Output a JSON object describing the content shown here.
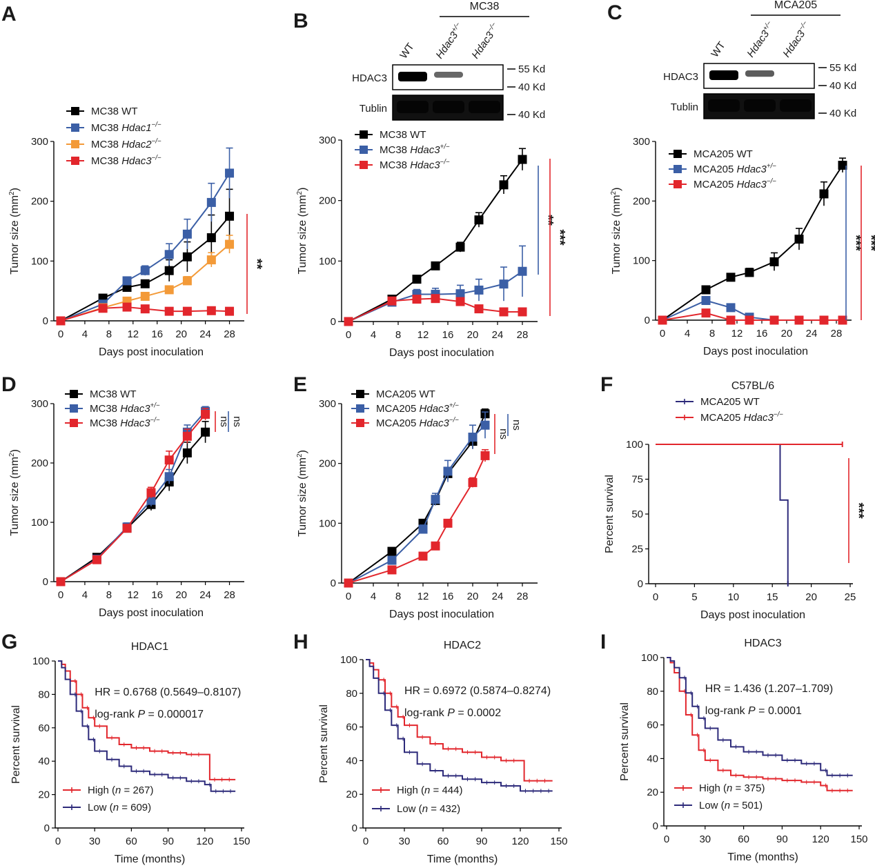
{
  "panel_labels": [
    "A",
    "B",
    "C",
    "D",
    "E",
    "F",
    "G",
    "H",
    "I"
  ],
  "colors": {
    "black": "#000000",
    "blue": "#3b5fa6",
    "orange": "#f39a38",
    "red": "#e2262c",
    "navy": "#2d2a7a",
    "km_red": "#e2262c"
  },
  "blots": {
    "B": {
      "group": "MC38",
      "lanes": [
        "WT",
        "Hdac3+/−",
        "Hdac3−/−"
      ],
      "rows": [
        "HDAC3",
        "Tublin"
      ],
      "markers": [
        "55 Kd",
        "40 Kd",
        "40 Kd"
      ],
      "hdac3_intensity": [
        1.0,
        0.55,
        0.0
      ]
    },
    "C": {
      "group": "MCA205",
      "lanes": [
        "WT",
        "Hdac3+/−",
        "Hdac3−/−"
      ],
      "rows": [
        "HDAC3",
        "Tublin"
      ],
      "markers": [
        "55 Kd",
        "40 Kd",
        "40 Kd"
      ],
      "hdac3_intensity": [
        1.0,
        0.6,
        0.0
      ]
    }
  },
  "chart_data": [
    {
      "panel": "A",
      "type": "line",
      "title": "",
      "xlabel": "Days post inoculation",
      "ylabel": "Tumor size (mm2)",
      "xlim": [
        0,
        30
      ],
      "ylim": [
        0,
        300
      ],
      "xticks": [
        0,
        4,
        8,
        12,
        16,
        20,
        24,
        28
      ],
      "yticks": [
        0,
        100,
        200,
        300
      ],
      "legend": "top-left",
      "series": [
        {
          "name": "MC38 WT",
          "color": "#000000",
          "x": [
            0,
            7,
            11,
            14,
            18,
            21,
            25,
            28
          ],
          "y": [
            0,
            38,
            56,
            62,
            84,
            107,
            139,
            175
          ],
          "err": [
            0,
            4,
            6,
            5,
            18,
            25,
            38,
            45
          ]
        },
        {
          "name": "MC38 Hdac1−/−",
          "color": "#3b5fa6",
          "x": [
            0,
            7,
            11,
            14,
            18,
            21,
            25,
            28
          ],
          "y": [
            0,
            28,
            67,
            84,
            111,
            145,
            198,
            247
          ],
          "err": [
            0,
            4,
            5,
            8,
            18,
            25,
            32,
            42
          ]
        },
        {
          "name": "MC38 Hdac2−/−",
          "color": "#f39a38",
          "x": [
            0,
            7,
            11,
            14,
            18,
            21,
            25,
            28
          ],
          "y": [
            0,
            22,
            33,
            41,
            52,
            67,
            102,
            128
          ],
          "err": [
            0,
            3,
            4,
            5,
            6,
            7,
            12,
            15
          ]
        },
        {
          "name": "MC38 Hdac3−/−",
          "color": "#e2262c",
          "x": [
            0,
            7,
            11,
            14,
            18,
            21,
            25,
            28
          ],
          "y": [
            0,
            21,
            23,
            20,
            16,
            16,
            17,
            16
          ],
          "err": [
            0,
            3,
            3,
            3,
            2,
            2,
            2,
            2
          ]
        }
      ],
      "significance": [
        {
          "label": "**",
          "color": "#e2262c"
        }
      ]
    },
    {
      "panel": "B",
      "type": "line",
      "title": "",
      "xlabel": "Days post inoculation",
      "ylabel": "Tumor size (mm2)",
      "xlim": [
        0,
        30
      ],
      "ylim": [
        0,
        300
      ],
      "xticks": [
        0,
        4,
        8,
        12,
        16,
        20,
        24,
        28
      ],
      "yticks": [
        0,
        100,
        200,
        300
      ],
      "legend": "top-left",
      "series": [
        {
          "name": "MC38 WT",
          "color": "#000000",
          "x": [
            0,
            7,
            11,
            14,
            18,
            21,
            25,
            28
          ],
          "y": [
            0,
            37,
            70,
            92,
            123,
            168,
            226,
            268
          ],
          "err": [
            0,
            4,
            5,
            5,
            8,
            12,
            15,
            18
          ]
        },
        {
          "name": "MC38 Hdac3+/−",
          "color": "#3b5fa6",
          "x": [
            0,
            7,
            11,
            14,
            18,
            21,
            25,
            28
          ],
          "y": [
            0,
            32,
            45,
            45,
            46,
            52,
            62,
            83
          ],
          "err": [
            0,
            4,
            8,
            10,
            14,
            18,
            28,
            42
          ]
        },
        {
          "name": "MC38 Hdac3−/−",
          "color": "#e2262c",
          "x": [
            0,
            7,
            11,
            14,
            18,
            21,
            25,
            28
          ],
          "y": [
            0,
            34,
            37,
            38,
            33,
            21,
            16,
            16
          ],
          "err": [
            0,
            4,
            5,
            5,
            4,
            3,
            2,
            2
          ]
        }
      ],
      "significance": [
        {
          "label": "**",
          "color": "#3b5fa6"
        },
        {
          "label": "***",
          "color": "#e2262c"
        }
      ]
    },
    {
      "panel": "C",
      "type": "line",
      "title": "",
      "xlabel": "Days post inoculation",
      "ylabel": "Tumor size (mm2)",
      "xlim": [
        0,
        30
      ],
      "ylim": [
        0,
        300
      ],
      "xticks": [
        0,
        4,
        8,
        12,
        16,
        20,
        24,
        28
      ],
      "yticks": [
        0,
        100,
        200,
        300
      ],
      "legend": "top-left",
      "series": [
        {
          "name": "MCA205 WT",
          "color": "#000000",
          "x": [
            0,
            7,
            11,
            14,
            18,
            22,
            26,
            29
          ],
          "y": [
            0,
            51,
            72,
            80,
            98,
            136,
            212,
            260
          ],
          "err": [
            0,
            5,
            5,
            7,
            15,
            18,
            20,
            12
          ]
        },
        {
          "name": "MCA205 Hdac3+/−",
          "color": "#3b5fa6",
          "x": [
            0,
            7,
            11,
            14,
            18,
            22,
            26,
            29
          ],
          "y": [
            0,
            33,
            21,
            5,
            0,
            0,
            0,
            0
          ],
          "err": [
            0,
            3,
            3,
            2,
            0,
            0,
            0,
            0
          ]
        },
        {
          "name": "MCA205 Hdac3−/−",
          "color": "#e2262c",
          "x": [
            0,
            7,
            11,
            14,
            18,
            22,
            26,
            29
          ],
          "y": [
            0,
            12,
            0,
            0,
            0,
            0,
            0,
            0
          ],
          "err": [
            0,
            2,
            0,
            0,
            0,
            0,
            0,
            0
          ]
        }
      ],
      "significance": [
        {
          "label": "***",
          "color": "#3b5fa6"
        },
        {
          "label": "***",
          "color": "#e2262c"
        }
      ]
    },
    {
      "panel": "D",
      "type": "line",
      "title": "",
      "xlabel": "Days post inoculation",
      "ylabel": "Tumor size (mm2)",
      "xlim": [
        0,
        30
      ],
      "ylim": [
        0,
        300
      ],
      "xticks": [
        0,
        4,
        8,
        12,
        16,
        20,
        24,
        28
      ],
      "yticks": [
        0,
        100,
        200,
        300
      ],
      "legend": "top-left",
      "series": [
        {
          "name": "MC38 WT",
          "color": "#000000",
          "x": [
            0,
            6,
            11,
            15,
            18,
            21,
            24
          ],
          "y": [
            0,
            41,
            90,
            130,
            168,
            217,
            252
          ],
          "err": [
            0,
            4,
            7,
            10,
            15,
            18,
            18
          ]
        },
        {
          "name": "MC38 Hdac3+/−",
          "color": "#3b5fa6",
          "x": [
            0,
            6,
            11,
            15,
            18,
            21,
            24
          ],
          "y": [
            0,
            38,
            92,
            137,
            177,
            252,
            287
          ],
          "err": [
            0,
            4,
            7,
            10,
            12,
            12,
            8
          ]
        },
        {
          "name": "MC38 Hdac3−/−",
          "color": "#e2262c",
          "x": [
            0,
            6,
            11,
            15,
            18,
            21,
            24
          ],
          "y": [
            0,
            37,
            90,
            150,
            205,
            245,
            282
          ],
          "err": [
            0,
            4,
            6,
            9,
            15,
            12,
            10
          ]
        }
      ],
      "significance": [
        {
          "label": "ns",
          "color": "#e2262c"
        },
        {
          "label": "ns",
          "color": "#3b5fa6"
        }
      ]
    },
    {
      "panel": "E",
      "type": "line",
      "title": "",
      "xlabel": "Days post inoculation",
      "ylabel": "Tumor size (mm2)",
      "xlim": [
        0,
        30
      ],
      "ylim": [
        0,
        300
      ],
      "xticks": [
        0,
        4,
        8,
        12,
        16,
        20,
        24,
        28
      ],
      "yticks": [
        0,
        100,
        200,
        300
      ],
      "legend": "top-left",
      "series": [
        {
          "name": "MCA205 WT",
          "color": "#000000",
          "x": [
            0,
            7,
            12,
            14,
            16,
            20,
            22
          ],
          "y": [
            0,
            53,
            100,
            138,
            183,
            237,
            283
          ],
          "err": [
            0,
            4,
            6,
            8,
            10,
            12,
            8
          ]
        },
        {
          "name": "MCA205 Hdac3+/−",
          "color": "#3b5fa6",
          "x": [
            0,
            7,
            12,
            14,
            16,
            20,
            22
          ],
          "y": [
            0,
            38,
            90,
            140,
            187,
            244,
            264
          ],
          "err": [
            0,
            4,
            7,
            10,
            18,
            20,
            22
          ]
        },
        {
          "name": "MCA205 Hdac3−/−",
          "color": "#e2262c",
          "x": [
            0,
            7,
            12,
            14,
            16,
            20,
            22
          ],
          "y": [
            0,
            22,
            45,
            62,
            100,
            168,
            213
          ],
          "err": [
            0,
            3,
            4,
            5,
            6,
            8,
            10
          ]
        }
      ],
      "significance": [
        {
          "label": "ns",
          "color": "#e2262c"
        },
        {
          "label": "ns",
          "color": "#3b5fa6"
        }
      ]
    },
    {
      "panel": "F",
      "type": "line",
      "title": "C57BL/6",
      "xlabel": "Days post inoculation",
      "ylabel": "Percent survival",
      "xlim": [
        0,
        25
      ],
      "ylim": [
        0,
        100
      ],
      "xticks": [
        0,
        5,
        10,
        15,
        20,
        25
      ],
      "yticks": [
        0,
        25,
        50,
        75,
        100
      ],
      "legend": "top",
      "series": [
        {
          "name": "MCA205 WT",
          "color": "#2d2a7a",
          "x": [
            0,
            16,
            16,
            17,
            17
          ],
          "y": [
            100,
            100,
            60,
            60,
            0
          ]
        },
        {
          "name": "MCA205 Hdac3−/−",
          "color": "#e2262c",
          "x": [
            0,
            24
          ],
          "y": [
            100,
            100
          ]
        }
      ],
      "significance": [
        {
          "label": "***",
          "color": "#e2262c"
        }
      ]
    },
    {
      "panel": "G",
      "type": "line",
      "title": "HDAC1",
      "xlabel": "Time (months)",
      "ylabel": "Percent survival",
      "xlim": [
        0,
        150
      ],
      "ylim": [
        0,
        100
      ],
      "xticks": [
        0,
        30,
        60,
        90,
        120,
        150
      ],
      "yticks": [
        0,
        20,
        40,
        60,
        80,
        100
      ],
      "legend": "bottom-left",
      "annotations": [
        "HR = 0.6768 (0.5649–0.8107)",
        "log-rank P = 0.000017"
      ],
      "series": [
        {
          "name": "High (n = 267)",
          "color": "#e2262c",
          "x": [
            0,
            3,
            6,
            10,
            15,
            20,
            25,
            30,
            40,
            50,
            60,
            75,
            90,
            105,
            120,
            124,
            124,
            145
          ],
          "y": [
            100,
            98,
            94,
            88,
            80,
            72,
            66,
            61,
            54,
            50,
            48,
            46,
            45,
            44,
            44,
            44,
            29,
            29
          ]
        },
        {
          "name": "Low (n = 609)",
          "color": "#2d2a7a",
          "x": [
            0,
            3,
            6,
            10,
            15,
            20,
            25,
            30,
            40,
            50,
            60,
            75,
            90,
            105,
            120,
            125,
            145
          ],
          "y": [
            100,
            96,
            89,
            80,
            70,
            61,
            53,
            46,
            41,
            37,
            34,
            32,
            30,
            28,
            26,
            22,
            22
          ]
        }
      ]
    },
    {
      "panel": "H",
      "type": "line",
      "title": "HDAC2",
      "xlabel": "Time (months)",
      "ylabel": "Percent survival",
      "xlim": [
        0,
        150
      ],
      "ylim": [
        0,
        100
      ],
      "xticks": [
        0,
        30,
        60,
        90,
        120,
        150
      ],
      "yticks": [
        0,
        20,
        40,
        60,
        80,
        100
      ],
      "legend": "bottom-left",
      "annotations": [
        "HR = 0.6972 (0.5874–0.8274)",
        "log-rank P = 0.0002"
      ],
      "series": [
        {
          "name": "High (n = 444)",
          "color": "#e2262c",
          "x": [
            0,
            3,
            6,
            10,
            15,
            20,
            25,
            30,
            40,
            50,
            60,
            75,
            90,
            105,
            120,
            123,
            123,
            145
          ],
          "y": [
            100,
            98,
            94,
            88,
            80,
            72,
            66,
            61,
            54,
            50,
            47,
            45,
            42,
            40,
            40,
            40,
            28,
            28
          ]
        },
        {
          "name": "Low (n = 432)",
          "color": "#2d2a7a",
          "x": [
            0,
            3,
            6,
            10,
            15,
            20,
            25,
            30,
            40,
            50,
            60,
            75,
            90,
            105,
            120,
            145
          ],
          "y": [
            100,
            96,
            89,
            80,
            70,
            61,
            53,
            45,
            38,
            34,
            31,
            29,
            27,
            25,
            22,
            22
          ]
        }
      ]
    },
    {
      "panel": "I",
      "type": "line",
      "title": "HDAC3",
      "xlabel": "Time (months)",
      "ylabel": "Percent survival",
      "xlim": [
        0,
        150
      ],
      "ylim": [
        0,
        100
      ],
      "xticks": [
        0,
        30,
        60,
        90,
        120,
        150
      ],
      "yticks": [
        0,
        20,
        40,
        60,
        80,
        100
      ],
      "legend": "bottom-left",
      "annotations": [
        "HR = 1.436 (1.207–1.709)",
        "log-rank P = 0.0001"
      ],
      "series": [
        {
          "name": "High (n = 375)",
          "color": "#e2262c",
          "x": [
            0,
            3,
            6,
            10,
            15,
            20,
            25,
            30,
            40,
            50,
            60,
            75,
            90,
            105,
            120,
            125,
            145
          ],
          "y": [
            100,
            97,
            91,
            80,
            66,
            54,
            45,
            39,
            33,
            30,
            29,
            28,
            27,
            26,
            24,
            21,
            21
          ]
        },
        {
          "name": "Low (n = 501)",
          "color": "#2d2a7a",
          "x": [
            0,
            3,
            6,
            10,
            15,
            20,
            25,
            30,
            40,
            50,
            60,
            75,
            90,
            105,
            120,
            125,
            145
          ],
          "y": [
            100,
            98,
            94,
            88,
            79,
            71,
            64,
            58,
            51,
            47,
            44,
            42,
            39,
            37,
            33,
            30,
            30
          ]
        }
      ]
    }
  ]
}
